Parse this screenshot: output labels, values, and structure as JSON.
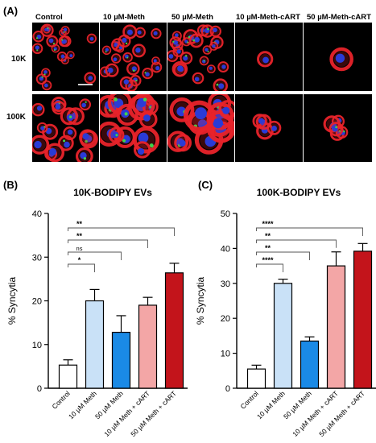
{
  "panel_a": {
    "letter": "(A)",
    "conditions": [
      "Control",
      "10 µM-Meth",
      "50 µM-Meth",
      "10 µM-Meth-cART",
      "50 µM-Meth-cART"
    ],
    "rows": [
      "10K",
      "100K"
    ],
    "colors": {
      "membrane": "#e8232a",
      "nucleus": "#2a3bd6",
      "ev": "#3fd34a",
      "background": "#000000",
      "scale_bar": "#d0d0d0"
    }
  },
  "chart_data": [
    {
      "panel": "(B)",
      "type": "bar",
      "title": "10K-BODIPY EVs",
      "ylabel": "% Syncytia",
      "xlabel": "",
      "ylim": [
        0,
        40
      ],
      "yticks": [
        0,
        10,
        20,
        30,
        40
      ],
      "categories": [
        "Control",
        "10 µM Meth",
        "50 µM Meth",
        "10 µM Meth + cART",
        "50 µM Meth + cART"
      ],
      "values": [
        5.3,
        20.0,
        12.8,
        19.0,
        26.4
      ],
      "errors": [
        1.2,
        2.6,
        3.8,
        1.8,
        2.2
      ],
      "colors": [
        "#ffffff",
        "#c9e1f7",
        "#1a8ae6",
        "#f3a6a6",
        "#c3141b"
      ],
      "significance": [
        {
          "from": 0,
          "to": 1,
          "label": "*"
        },
        {
          "from": 0,
          "to": 2,
          "label": "ns"
        },
        {
          "from": 0,
          "to": 3,
          "label": "**"
        },
        {
          "from": 0,
          "to": 4,
          "label": "**"
        }
      ]
    },
    {
      "panel": "(C)",
      "type": "bar",
      "title": "100K-BODIPY EVs",
      "ylabel": "% Syncytia",
      "xlabel": "",
      "ylim": [
        0,
        50
      ],
      "yticks": [
        0,
        10,
        20,
        30,
        40,
        50
      ],
      "categories": [
        "Control",
        "10 µM Meth",
        "50 µM Meth",
        "10 µM Meth + cART",
        "50 µM Meth + cART"
      ],
      "values": [
        5.5,
        30.0,
        13.5,
        35.0,
        39.2
      ],
      "errors": [
        1.1,
        1.2,
        1.2,
        4.0,
        2.2
      ],
      "colors": [
        "#ffffff",
        "#c9e1f7",
        "#1a8ae6",
        "#f3a6a6",
        "#c3141b"
      ],
      "significance": [
        {
          "from": 0,
          "to": 1,
          "label": "****"
        },
        {
          "from": 0,
          "to": 2,
          "label": "**"
        },
        {
          "from": 0,
          "to": 3,
          "label": "**"
        },
        {
          "from": 0,
          "to": 4,
          "label": "****"
        }
      ]
    }
  ]
}
